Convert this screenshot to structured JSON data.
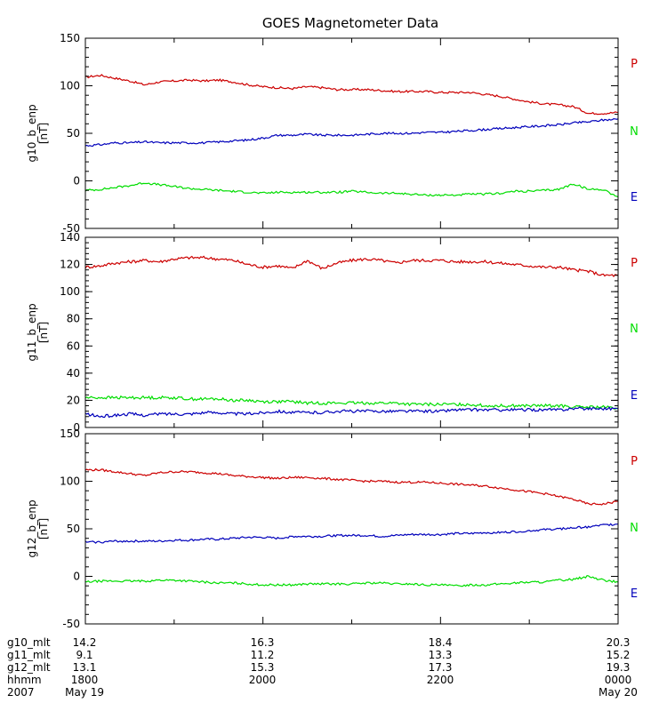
{
  "chart_data": {
    "type": "line",
    "title": "GOES Magnetometer Data",
    "x_domain": [
      0,
      360
    ],
    "x_unit": "minutes after 1800 UT, 2007 May 19",
    "panels": [
      {
        "id": "g10",
        "ylabel": "g10_b_enp",
        "yunit": "[nT]",
        "ylim": [
          -50,
          150
        ],
        "yticks": [
          -50,
          0,
          50,
          100,
          150
        ],
        "series": [
          {
            "name": "P",
            "color": "#cc0000",
            "x": [
              0,
              10,
              20,
              30,
              40,
              50,
              60,
              70,
              80,
              90,
              100,
              110,
              120,
              130,
              140,
              150,
              160,
              170,
              180,
              190,
              200,
              210,
              220,
              230,
              240,
              250,
              260,
              270,
              280,
              290,
              300,
              310,
              320,
              330,
              340,
              350,
              360
            ],
            "values": [
              109,
              111,
              108,
              105,
              101,
              104,
              105,
              106,
              105,
              106,
              104,
              101,
              99,
              98,
              97,
              99,
              98,
              96,
              96,
              96,
              95,
              94,
              94,
              94,
              93,
              93,
              93,
              91,
              89,
              86,
              83,
              81,
              80,
              78,
              71,
              71,
              72
            ]
          },
          {
            "name": "N",
            "color": "#00dd00",
            "x": [
              0,
              10,
              20,
              30,
              40,
              50,
              60,
              70,
              80,
              90,
              100,
              110,
              120,
              130,
              140,
              150,
              160,
              170,
              180,
              190,
              200,
              210,
              220,
              230,
              240,
              250,
              260,
              270,
              280,
              290,
              300,
              310,
              320,
              330,
              340,
              350,
              360
            ],
            "values": [
              -10,
              -9,
              -7,
              -5,
              -2,
              -4,
              -6,
              -8,
              -9,
              -10,
              -11,
              -12,
              -13,
              -12,
              -12,
              -12,
              -12,
              -12,
              -11,
              -12,
              -13,
              -13,
              -14,
              -15,
              -15,
              -15,
              -14,
              -14,
              -13,
              -11,
              -11,
              -10,
              -9,
              -3,
              -9,
              -9,
              -17
            ]
          },
          {
            "name": "E",
            "color": "#0000bb",
            "x": [
              0,
              10,
              20,
              30,
              40,
              50,
              60,
              70,
              80,
              90,
              100,
              110,
              120,
              130,
              140,
              150,
              160,
              170,
              180,
              190,
              200,
              210,
              220,
              230,
              240,
              250,
              260,
              270,
              280,
              290,
              300,
              310,
              320,
              330,
              340,
              350,
              360
            ],
            "values": [
              37,
              38,
              40,
              40,
              41,
              40,
              40,
              40,
              40,
              41,
              42,
              43,
              45,
              48,
              48,
              49,
              48,
              48,
              48,
              49,
              50,
              50,
              50,
              51,
              51,
              52,
              53,
              54,
              55,
              56,
              57,
              58,
              59,
              61,
              62,
              64,
              65
            ]
          }
        ],
        "labels": [
          "P",
          "N",
          "E"
        ],
        "label_colors": [
          "#cc0000",
          "#00dd00",
          "#0000bb"
        ]
      },
      {
        "id": "g11",
        "ylabel": "g11_b_enp",
        "yunit": "[nT]",
        "ylim": [
          0,
          140
        ],
        "yticks": [
          0,
          20,
          40,
          60,
          80,
          100,
          120,
          140
        ],
        "series": [
          {
            "name": "P",
            "color": "#cc0000",
            "x": [
              0,
              10,
              20,
              30,
              40,
              50,
              60,
              70,
              80,
              90,
              100,
              110,
              120,
              130,
              140,
              150,
              160,
              170,
              180,
              190,
              200,
              210,
              220,
              230,
              240,
              250,
              260,
              270,
              280,
              290,
              300,
              310,
              320,
              330,
              340,
              350,
              360
            ],
            "values": [
              118,
              119,
              121,
              122,
              123,
              122,
              124,
              125,
              125,
              124,
              123,
              120,
              118,
              119,
              117,
              123,
              117,
              121,
              123,
              124,
              123,
              121,
              123,
              123,
              123,
              122,
              122,
              122,
              121,
              120,
              119,
              118,
              118,
              116,
              115,
              112,
              112
            ]
          },
          {
            "name": "N",
            "color": "#00dd00",
            "x": [
              0,
              10,
              20,
              30,
              40,
              50,
              60,
              70,
              80,
              90,
              100,
              110,
              120,
              130,
              140,
              150,
              160,
              170,
              180,
              190,
              200,
              210,
              220,
              230,
              240,
              250,
              260,
              270,
              280,
              290,
              300,
              310,
              320,
              330,
              340,
              350,
              360
            ],
            "values": [
              22,
              22,
              22,
              22,
              22,
              22,
              22,
              21,
              21,
              21,
              20,
              20,
              19,
              19,
              19,
              18,
              18,
              18,
              18,
              18,
              18,
              18,
              17,
              17,
              17,
              17,
              17,
              16,
              16,
              16,
              16,
              16,
              16,
              15,
              15,
              15,
              14
            ]
          },
          {
            "name": "E",
            "color": "#0000bb",
            "x": [
              0,
              10,
              20,
              30,
              40,
              50,
              60,
              70,
              80,
              90,
              100,
              110,
              120,
              130,
              140,
              150,
              160,
              170,
              180,
              190,
              200,
              210,
              220,
              230,
              240,
              250,
              260,
              270,
              280,
              290,
              300,
              310,
              320,
              330,
              340,
              350,
              360
            ],
            "values": [
              10,
              8,
              9,
              10,
              9,
              10,
              10,
              10,
              11,
              11,
              10,
              10,
              11,
              12,
              11,
              11,
              11,
              12,
              12,
              12,
              12,
              12,
              12,
              12,
              12,
              13,
              13,
              13,
              13,
              13,
              13,
              13,
              13,
              14,
              14,
              14,
              14
            ]
          }
        ],
        "labels": [
          "P",
          "N",
          "E"
        ],
        "label_colors": [
          "#cc0000",
          "#00dd00",
          "#0000bb"
        ]
      },
      {
        "id": "g12",
        "ylabel": "g12_b_enp",
        "yunit": "[nT]",
        "ylim": [
          -50,
          150
        ],
        "yticks": [
          -50,
          0,
          50,
          100,
          150
        ],
        "series": [
          {
            "name": "P",
            "color": "#cc0000",
            "x": [
              0,
              10,
              20,
              30,
              40,
              50,
              60,
              70,
              80,
              90,
              100,
              110,
              120,
              130,
              140,
              150,
              160,
              170,
              180,
              190,
              200,
              210,
              220,
              230,
              240,
              250,
              260,
              270,
              280,
              290,
              300,
              310,
              320,
              330,
              340,
              350,
              360
            ],
            "values": [
              112,
              112,
              110,
              108,
              106,
              109,
              110,
              110,
              109,
              108,
              106,
              105,
              104,
              103,
              104,
              104,
              103,
              102,
              101,
              100,
              100,
              99,
              99,
              99,
              98,
              97,
              96,
              95,
              93,
              91,
              89,
              87,
              84,
              81,
              76,
              76,
              79
            ]
          },
          {
            "name": "N",
            "color": "#00dd00",
            "x": [
              0,
              10,
              20,
              30,
              40,
              50,
              60,
              70,
              80,
              90,
              100,
              110,
              120,
              130,
              140,
              150,
              160,
              170,
              180,
              190,
              200,
              210,
              220,
              230,
              240,
              250,
              260,
              270,
              280,
              290,
              300,
              310,
              320,
              330,
              340,
              350,
              360
            ],
            "values": [
              -6,
              -5,
              -5,
              -5,
              -5,
              -4,
              -4,
              -5,
              -6,
              -7,
              -7,
              -8,
              -9,
              -9,
              -9,
              -8,
              -8,
              -8,
              -8,
              -7,
              -7,
              -8,
              -8,
              -9,
              -9,
              -10,
              -9,
              -9,
              -8,
              -7,
              -6,
              -6,
              -4,
              -3,
              0,
              -4,
              -6
            ]
          },
          {
            "name": "E",
            "color": "#0000bb",
            "x": [
              0,
              10,
              20,
              30,
              40,
              50,
              60,
              70,
              80,
              90,
              100,
              110,
              120,
              130,
              140,
              150,
              160,
              170,
              180,
              190,
              200,
              210,
              220,
              230,
              240,
              250,
              260,
              270,
              280,
              290,
              300,
              310,
              320,
              330,
              340,
              350,
              360
            ],
            "values": [
              36,
              36,
              37,
              37,
              37,
              37,
              38,
              38,
              39,
              39,
              40,
              41,
              41,
              40,
              42,
              42,
              42,
              43,
              43,
              43,
              42,
              43,
              44,
              44,
              44,
              45,
              45,
              46,
              46,
              47,
              48,
              49,
              50,
              51,
              52,
              54,
              55
            ]
          }
        ],
        "labels": [
          "P",
          "N",
          "E"
        ],
        "label_colors": [
          "#cc0000",
          "#00dd00",
          "#0000bb"
        ]
      }
    ],
    "footer": {
      "rows": [
        {
          "name": "g10_mlt",
          "values": [
            "14.2",
            "16.3",
            "18.4",
            "20.3"
          ]
        },
        {
          "name": "g11_mlt",
          "values": [
            "9.1",
            "11.2",
            "13.3",
            "15.2"
          ]
        },
        {
          "name": "g12_mlt",
          "values": [
            "13.1",
            "15.3",
            "17.3",
            "19.3"
          ]
        },
        {
          "name": "hhmm",
          "values": [
            "1800",
            "2000",
            "2200",
            "0000"
          ]
        },
        {
          "name": "2007",
          "values": [
            "May 19",
            "",
            "",
            "May 20"
          ]
        }
      ]
    }
  }
}
